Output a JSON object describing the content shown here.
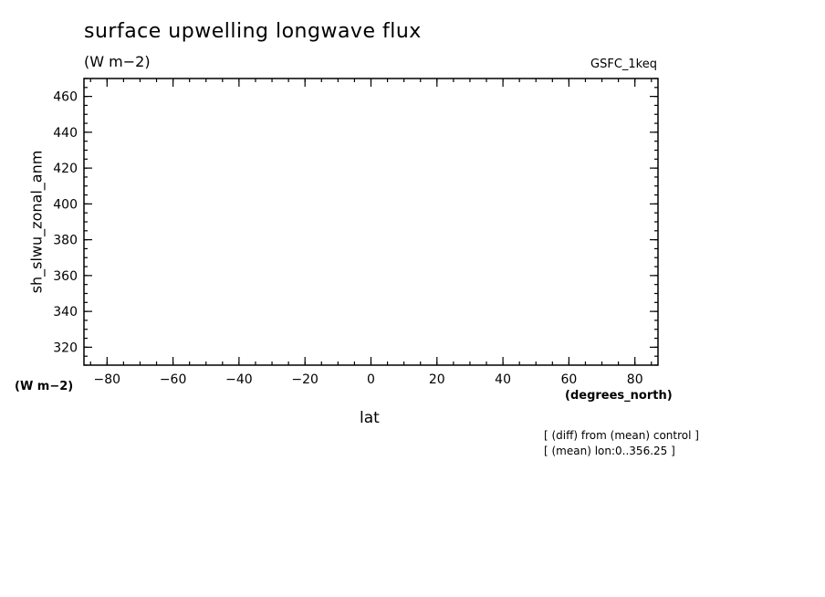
{
  "chart_data": {
    "type": "line",
    "title": "surface upwelling longwave flux",
    "units_label": "(W m−2)",
    "dataset_label": "GSFC_1keq",
    "ylabel": "sh_slwu_zonal_anm",
    "yunits": "(W m−2)",
    "xlabel": "lat",
    "xunits": "(degrees_north)",
    "xlim": [
      -87,
      87
    ],
    "ylim": [
      310,
      470
    ],
    "xticks": [
      -80,
      -60,
      -40,
      -20,
      0,
      20,
      40,
      60,
      80
    ],
    "xtick_labels": [
      "−80",
      "−60",
      "−40",
      "−20",
      "0",
      "20",
      "40",
      "60",
      "80"
    ],
    "yticks": [
      320,
      340,
      360,
      380,
      400,
      420,
      440,
      460
    ],
    "ytick_labels": [
      "320",
      "340",
      "360",
      "380",
      "400",
      "420",
      "440",
      "460"
    ],
    "x_minor_step": 5,
    "y_minor_step": 5,
    "series": [],
    "grid": false,
    "notes": [
      "[ (diff) from (mean) control ]",
      "[ (mean) lon:0..356.25 ]"
    ]
  }
}
